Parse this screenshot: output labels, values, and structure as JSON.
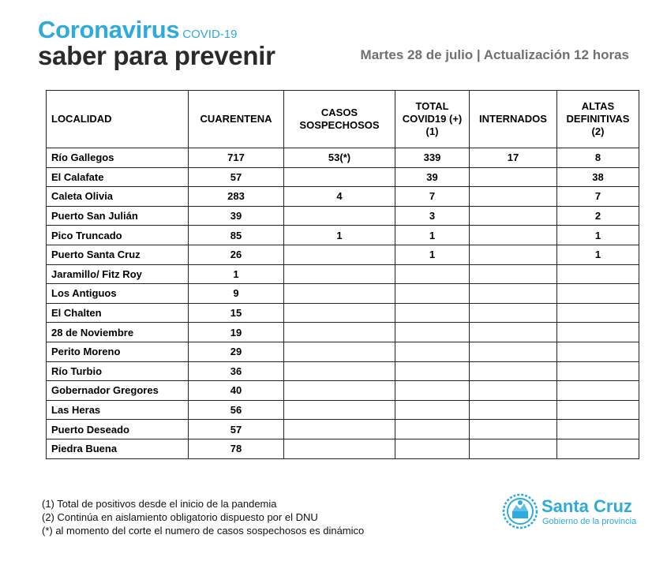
{
  "header": {
    "title": "Coronavirus",
    "title_small": "COVID-19",
    "subtitle": "saber para prevenir",
    "date": "Martes 28 de julio | Actualización 12 horas"
  },
  "colors": {
    "accent": "#2eaadc",
    "dark": "#2b2b2b",
    "muted": "#707070"
  },
  "table": {
    "headers": {
      "localidad": "LOCALIDAD",
      "cuarentena": "CUARENTENA",
      "casos_1": "CASOS",
      "casos_2": "SOSPECHOSOS",
      "total_1": "TOTAL",
      "total_2": "COVID19 (+)",
      "total_3": "(1)",
      "internados": "INTERNADOS",
      "altas_1": "ALTAS",
      "altas_2": "DEFINITIVAS",
      "altas_3": "(2)"
    },
    "rows": [
      [
        "Río Gallegos",
        "717",
        "53(*)",
        "339",
        "17",
        "8"
      ],
      [
        "El Calafate",
        "57",
        "",
        "39",
        "",
        "38"
      ],
      [
        "Caleta Olivia",
        "283",
        "4",
        "7",
        "",
        "7"
      ],
      [
        "Puerto San Julián",
        "39",
        "",
        "3",
        "",
        "2"
      ],
      [
        "Pico Truncado",
        "85",
        "1",
        "1",
        "",
        "1"
      ],
      [
        "Puerto Santa Cruz",
        "26",
        "",
        "1",
        "",
        "1"
      ],
      [
        "Jaramillo/ Fitz Roy",
        "1",
        "",
        "",
        "",
        ""
      ],
      [
        "Los Antiguos",
        "9",
        "",
        "",
        "",
        ""
      ],
      [
        "El Chalten",
        "15",
        "",
        "",
        "",
        ""
      ],
      [
        "28 de Noviembre",
        "19",
        "",
        "",
        "",
        ""
      ],
      [
        "Perito Moreno",
        "29",
        "",
        "",
        "",
        ""
      ],
      [
        "Río Turbio",
        "36",
        "",
        "",
        "",
        ""
      ],
      [
        "Gobernador Gregores",
        "40",
        "",
        "",
        "",
        ""
      ],
      [
        "Las Heras",
        "56",
        "",
        "",
        "",
        ""
      ],
      [
        "Puerto Deseado",
        "57",
        "",
        "",
        "",
        ""
      ],
      [
        "Piedra Buena",
        "78",
        "",
        "",
        "",
        ""
      ]
    ]
  },
  "notes": [
    "(1) Total de positivos desde el inicio de la pandemia",
    "(2) Continúa en aislamiento obligatorio dispuesto por el DNU",
    "(*) al momento del corte el numero de casos sospechosos  es dinámico"
  ],
  "logo": {
    "emblem_icon": "provincial-shield-icon",
    "name": "Santa Cruz",
    "sub": "Gobierno de la provincia"
  }
}
